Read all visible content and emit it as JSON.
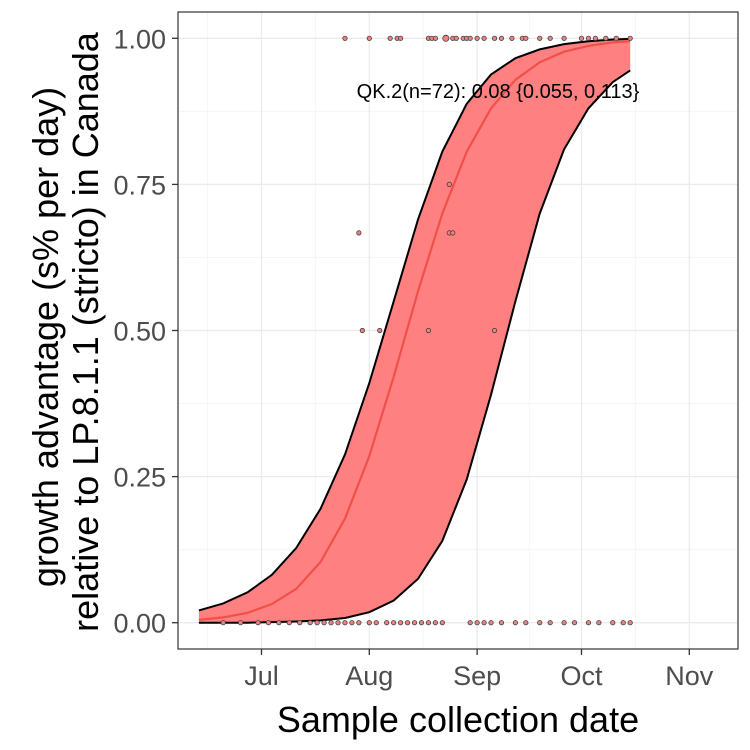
{
  "chart_data": {
    "type": "line",
    "xlabel": "Sample collection date",
    "ylabel_lines": [
      "growth advantage (s% per day)",
      "relative to LP.8.1.1 (stricto) in Canada"
    ],
    "annotation": "QK.2(n=72): 0.08 {0.055, 0.113}",
    "x_ticks": [
      {
        "date": "2025-07-01",
        "label": "Jul"
      },
      {
        "date": "2025-08-01",
        "label": "Aug"
      },
      {
        "date": "2025-09-01",
        "label": "Sep"
      },
      {
        "date": "2025-10-01",
        "label": "Oct"
      },
      {
        "date": "2025-11-01",
        "label": "Nov"
      }
    ],
    "y_ticks": [
      {
        "value": 0.0,
        "label": "0.00"
      },
      {
        "value": 0.25,
        "label": "0.25"
      },
      {
        "value": 0.5,
        "label": "0.50"
      },
      {
        "value": 0.75,
        "label": "0.75"
      },
      {
        "value": 1.0,
        "label": "1.00"
      }
    ],
    "xlim": [
      "2025-06-07",
      "2025-11-15"
    ],
    "ylim": [
      -0.045,
      1.045
    ],
    "grid": true,
    "colors": {
      "fit_line": "#f0504a",
      "ribbon_fill": "#ff8080",
      "ribbon_edge": "#000000",
      "point_fill": "#f08080",
      "point_edge": "#404040",
      "grid_major": "#ebebeb",
      "grid_minor": "#f5f5f5",
      "panel_border": "#333333"
    },
    "series": [
      {
        "type": "fit",
        "x": [
          "2025-06-13",
          "2025-06-20",
          "2025-06-27",
          "2025-07-04",
          "2025-07-11",
          "2025-07-18",
          "2025-07-25",
          "2025-08-01",
          "2025-08-08",
          "2025-08-15",
          "2025-08-22",
          "2025-08-29",
          "2025-09-05",
          "2025-09-12",
          "2025-09-19",
          "2025-09-26",
          "2025-10-03",
          "2025-10-10",
          "2025-10-15"
        ],
        "y": [
          0.005,
          0.009,
          0.017,
          0.032,
          0.058,
          0.104,
          0.178,
          0.285,
          0.421,
          0.567,
          0.7,
          0.806,
          0.88,
          0.929,
          0.959,
          0.977,
          0.987,
          0.993,
          0.995
        ]
      },
      {
        "type": "ci_upper",
        "x": [
          "2025-06-13",
          "2025-06-20",
          "2025-06-27",
          "2025-07-04",
          "2025-07-11",
          "2025-07-18",
          "2025-07-25",
          "2025-08-01",
          "2025-08-08",
          "2025-08-15",
          "2025-08-22",
          "2025-08-29",
          "2025-09-05",
          "2025-09-12",
          "2025-09-19",
          "2025-09-26",
          "2025-10-03",
          "2025-10-10",
          "2025-10-15"
        ],
        "y": [
          0.021,
          0.033,
          0.052,
          0.082,
          0.128,
          0.195,
          0.288,
          0.41,
          0.55,
          0.69,
          0.806,
          0.888,
          0.938,
          0.966,
          0.981,
          0.99,
          0.995,
          0.998,
          0.999
        ]
      },
      {
        "type": "ci_lower",
        "x": [
          "2025-06-13",
          "2025-06-20",
          "2025-06-27",
          "2025-07-04",
          "2025-07-11",
          "2025-07-18",
          "2025-07-25",
          "2025-08-01",
          "2025-08-08",
          "2025-08-15",
          "2025-08-22",
          "2025-08-29",
          "2025-09-05",
          "2025-09-12",
          "2025-09-19",
          "2025-09-26",
          "2025-10-03",
          "2025-10-10",
          "2025-10-15"
        ],
        "y": [
          0.0,
          0.0,
          0.0,
          0.001,
          0.002,
          0.004,
          0.008,
          0.018,
          0.038,
          0.075,
          0.14,
          0.245,
          0.39,
          0.55,
          0.7,
          0.81,
          0.88,
          0.925,
          0.945
        ]
      },
      {
        "type": "points",
        "points": [
          {
            "x": "2025-07-25",
            "y": 1.0,
            "size": 1
          },
          {
            "x": "2025-08-01",
            "y": 1.0,
            "size": 1
          },
          {
            "x": "2025-08-07",
            "y": 1.0,
            "size": 1
          },
          {
            "x": "2025-08-09",
            "y": 1.0,
            "size": 1
          },
          {
            "x": "2025-08-10",
            "y": 1.0,
            "size": 1
          },
          {
            "x": "2025-08-18",
            "y": 1.0,
            "size": 1
          },
          {
            "x": "2025-08-19",
            "y": 1.0,
            "size": 1
          },
          {
            "x": "2025-08-20",
            "y": 1.0,
            "size": 1
          },
          {
            "x": "2025-08-23",
            "y": 1.0,
            "size": 2
          },
          {
            "x": "2025-08-25",
            "y": 1.0,
            "size": 1
          },
          {
            "x": "2025-08-26",
            "y": 1.0,
            "size": 1
          },
          {
            "x": "2025-08-28",
            "y": 1.0,
            "size": 1
          },
          {
            "x": "2025-08-29",
            "y": 1.0,
            "size": 1
          },
          {
            "x": "2025-08-30",
            "y": 1.0,
            "size": 1
          },
          {
            "x": "2025-09-01",
            "y": 1.0,
            "size": 1
          },
          {
            "x": "2025-09-03",
            "y": 1.0,
            "size": 1
          },
          {
            "x": "2025-09-06",
            "y": 1.0,
            "size": 1
          },
          {
            "x": "2025-09-08",
            "y": 1.0,
            "size": 1
          },
          {
            "x": "2025-09-11",
            "y": 1.0,
            "size": 1
          },
          {
            "x": "2025-09-14",
            "y": 1.0,
            "size": 1
          },
          {
            "x": "2025-09-15",
            "y": 1.0,
            "size": 1
          },
          {
            "x": "2025-09-19",
            "y": 1.0,
            "size": 1
          },
          {
            "x": "2025-09-22",
            "y": 1.0,
            "size": 1
          },
          {
            "x": "2025-09-26",
            "y": 1.0,
            "size": 1
          },
          {
            "x": "2025-10-01",
            "y": 1.0,
            "size": 1
          },
          {
            "x": "2025-10-03",
            "y": 1.0,
            "size": 1
          },
          {
            "x": "2025-10-05",
            "y": 1.0,
            "size": 1
          },
          {
            "x": "2025-10-08",
            "y": 1.0,
            "size": 1
          },
          {
            "x": "2025-10-11",
            "y": 1.0,
            "size": 1
          },
          {
            "x": "2025-10-15",
            "y": 1.0,
            "size": 1
          },
          {
            "x": "2025-08-24",
            "y": 0.75,
            "size": 1
          },
          {
            "x": "2025-07-29",
            "y": 0.667,
            "size": 1
          },
          {
            "x": "2025-08-24",
            "y": 0.667,
            "size": 1
          },
          {
            "x": "2025-08-25",
            "y": 0.667,
            "size": 1
          },
          {
            "x": "2025-07-30",
            "y": 0.5,
            "size": 1
          },
          {
            "x": "2025-08-04",
            "y": 0.5,
            "size": 1
          },
          {
            "x": "2025-08-18",
            "y": 0.5,
            "size": 1
          },
          {
            "x": "2025-09-06",
            "y": 0.5,
            "size": 1
          },
          {
            "x": "2025-06-20",
            "y": 0.0,
            "size": 1
          },
          {
            "x": "2025-06-25",
            "y": 0.0,
            "size": 1
          },
          {
            "x": "2025-06-30",
            "y": 0.0,
            "size": 1
          },
          {
            "x": "2025-07-03",
            "y": 0.0,
            "size": 1
          },
          {
            "x": "2025-07-06",
            "y": 0.0,
            "size": 1
          },
          {
            "x": "2025-07-09",
            "y": 0.0,
            "size": 1
          },
          {
            "x": "2025-07-12",
            "y": 0.0,
            "size": 1
          },
          {
            "x": "2025-07-15",
            "y": 0.0,
            "size": 1
          },
          {
            "x": "2025-07-17",
            "y": 0.0,
            "size": 1
          },
          {
            "x": "2025-07-19",
            "y": 0.0,
            "size": 1
          },
          {
            "x": "2025-07-21",
            "y": 0.0,
            "size": 1
          },
          {
            "x": "2025-07-23",
            "y": 0.0,
            "size": 1
          },
          {
            "x": "2025-07-25",
            "y": 0.0,
            "size": 1
          },
          {
            "x": "2025-07-27",
            "y": 0.0,
            "size": 1
          },
          {
            "x": "2025-07-29",
            "y": 0.0,
            "size": 1
          },
          {
            "x": "2025-08-01",
            "y": 0.0,
            "size": 1
          },
          {
            "x": "2025-08-03",
            "y": 0.0,
            "size": 1
          },
          {
            "x": "2025-08-06",
            "y": 0.0,
            "size": 1
          },
          {
            "x": "2025-08-08",
            "y": 0.0,
            "size": 1
          },
          {
            "x": "2025-08-10",
            "y": 0.0,
            "size": 1
          },
          {
            "x": "2025-08-12",
            "y": 0.0,
            "size": 1
          },
          {
            "x": "2025-08-14",
            "y": 0.0,
            "size": 1
          },
          {
            "x": "2025-08-16",
            "y": 0.0,
            "size": 1
          },
          {
            "x": "2025-08-18",
            "y": 0.0,
            "size": 1
          },
          {
            "x": "2025-08-20",
            "y": 0.0,
            "size": 1
          },
          {
            "x": "2025-08-22",
            "y": 0.0,
            "size": 1
          },
          {
            "x": "2025-08-30",
            "y": 0.0,
            "size": 1
          },
          {
            "x": "2025-09-01",
            "y": 0.0,
            "size": 1
          },
          {
            "x": "2025-09-03",
            "y": 0.0,
            "size": 1
          },
          {
            "x": "2025-09-05",
            "y": 0.0,
            "size": 1
          },
          {
            "x": "2025-09-08",
            "y": 0.0,
            "size": 1
          },
          {
            "x": "2025-09-12",
            "y": 0.0,
            "size": 1
          },
          {
            "x": "2025-09-15",
            "y": 0.0,
            "size": 1
          },
          {
            "x": "2025-09-19",
            "y": 0.0,
            "size": 1
          },
          {
            "x": "2025-09-22",
            "y": 0.0,
            "size": 1
          },
          {
            "x": "2025-09-26",
            "y": 0.0,
            "size": 1
          },
          {
            "x": "2025-09-29",
            "y": 0.0,
            "size": 1
          },
          {
            "x": "2025-10-03",
            "y": 0.0,
            "size": 1
          },
          {
            "x": "2025-10-06",
            "y": 0.0,
            "size": 1
          },
          {
            "x": "2025-10-10",
            "y": 0.0,
            "size": 1
          },
          {
            "x": "2025-10-13",
            "y": 0.0,
            "size": 1
          },
          {
            "x": "2025-10-15",
            "y": 0.0,
            "size": 1
          }
        ]
      }
    ]
  }
}
